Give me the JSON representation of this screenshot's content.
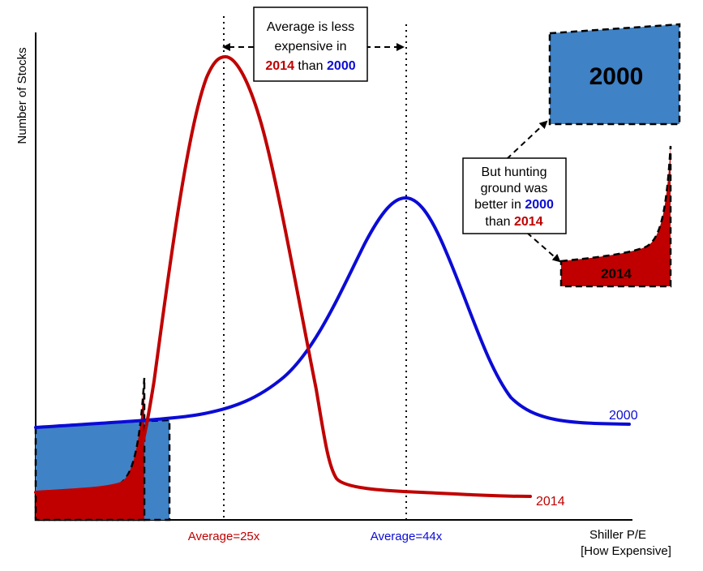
{
  "axes": {
    "ylabel": "Number of Stocks",
    "xlabel_line1": "Shiller P/E",
    "xlabel_line2": "[How Expensive]"
  },
  "series": {
    "s2000": {
      "label": "2000",
      "color": "#0b0bd6"
    },
    "s2014": {
      "label": "2014",
      "color": "#c00000"
    }
  },
  "averages": {
    "avg2014": "Average=25x",
    "avg2000": "Average=44x"
  },
  "callout_top": {
    "line1": "Average is less",
    "line2": "expensive in",
    "y2014": "2014",
    "than": " than ",
    "y2000": "2000"
  },
  "callout_right": {
    "line1": "But hunting",
    "line2": "ground was",
    "line3_pre": "better in ",
    "y2000": "2000",
    "line4_pre": "than ",
    "y2014": "2014"
  },
  "zoom": {
    "label2000": "2000",
    "label2014": "2014"
  },
  "colors": {
    "fill_blue": "#3f82c6",
    "fill_red": "#c00000"
  }
}
